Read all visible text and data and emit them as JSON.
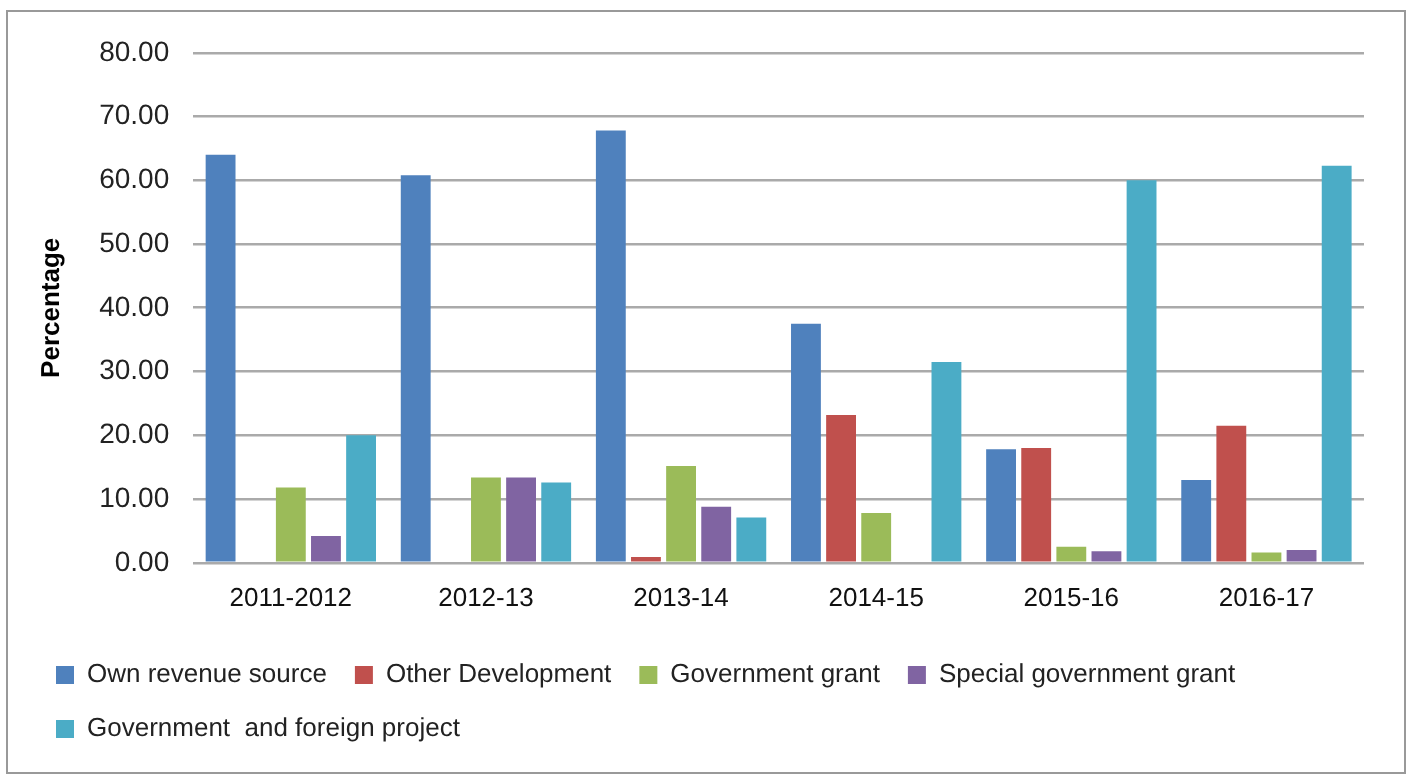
{
  "chart_data": {
    "type": "bar",
    "ylabel": "Percentage",
    "categories": [
      "2011-2012",
      "2012-13",
      "2013-14",
      "2014-15",
      "2015-16",
      "2016-17"
    ],
    "series": [
      {
        "name": "Own revenue source",
        "color": "#4f81bd",
        "values": [
          64,
          60.8,
          67.8,
          37.5,
          17.8,
          13
        ]
      },
      {
        "name": "Other Development",
        "color": "#c0504d",
        "values": [
          0,
          0,
          0.9,
          23.2,
          18,
          21.5
        ]
      },
      {
        "name": "Government grant",
        "color": "#9bbb59",
        "values": [
          11.8,
          13.4,
          15.2,
          7.8,
          2.5,
          1.6
        ]
      },
      {
        "name": "Special government grant",
        "color": "#8064a2",
        "values": [
          4.2,
          13.4,
          8.8,
          0,
          1.8,
          2
        ]
      },
      {
        "name": "Government  and foreign project",
        "color": "#4bacc6",
        "values": [
          20,
          12.6,
          7.1,
          31.5,
          60,
          62.3
        ]
      }
    ],
    "ylim": [
      0,
      80
    ],
    "yticks": [
      {
        "value": 0,
        "label": "0.00"
      },
      {
        "value": 10,
        "label": "10.00"
      },
      {
        "value": 20,
        "label": "20.00"
      },
      {
        "value": 30,
        "label": "30.00"
      },
      {
        "value": 40,
        "label": "40.00"
      },
      {
        "value": 50,
        "label": "50.00"
      },
      {
        "value": 60,
        "label": "60.00"
      },
      {
        "value": 70,
        "label": "70.00"
      },
      {
        "value": 80,
        "label": "80.00"
      }
    ],
    "grid": "y",
    "legend": "bottom"
  }
}
